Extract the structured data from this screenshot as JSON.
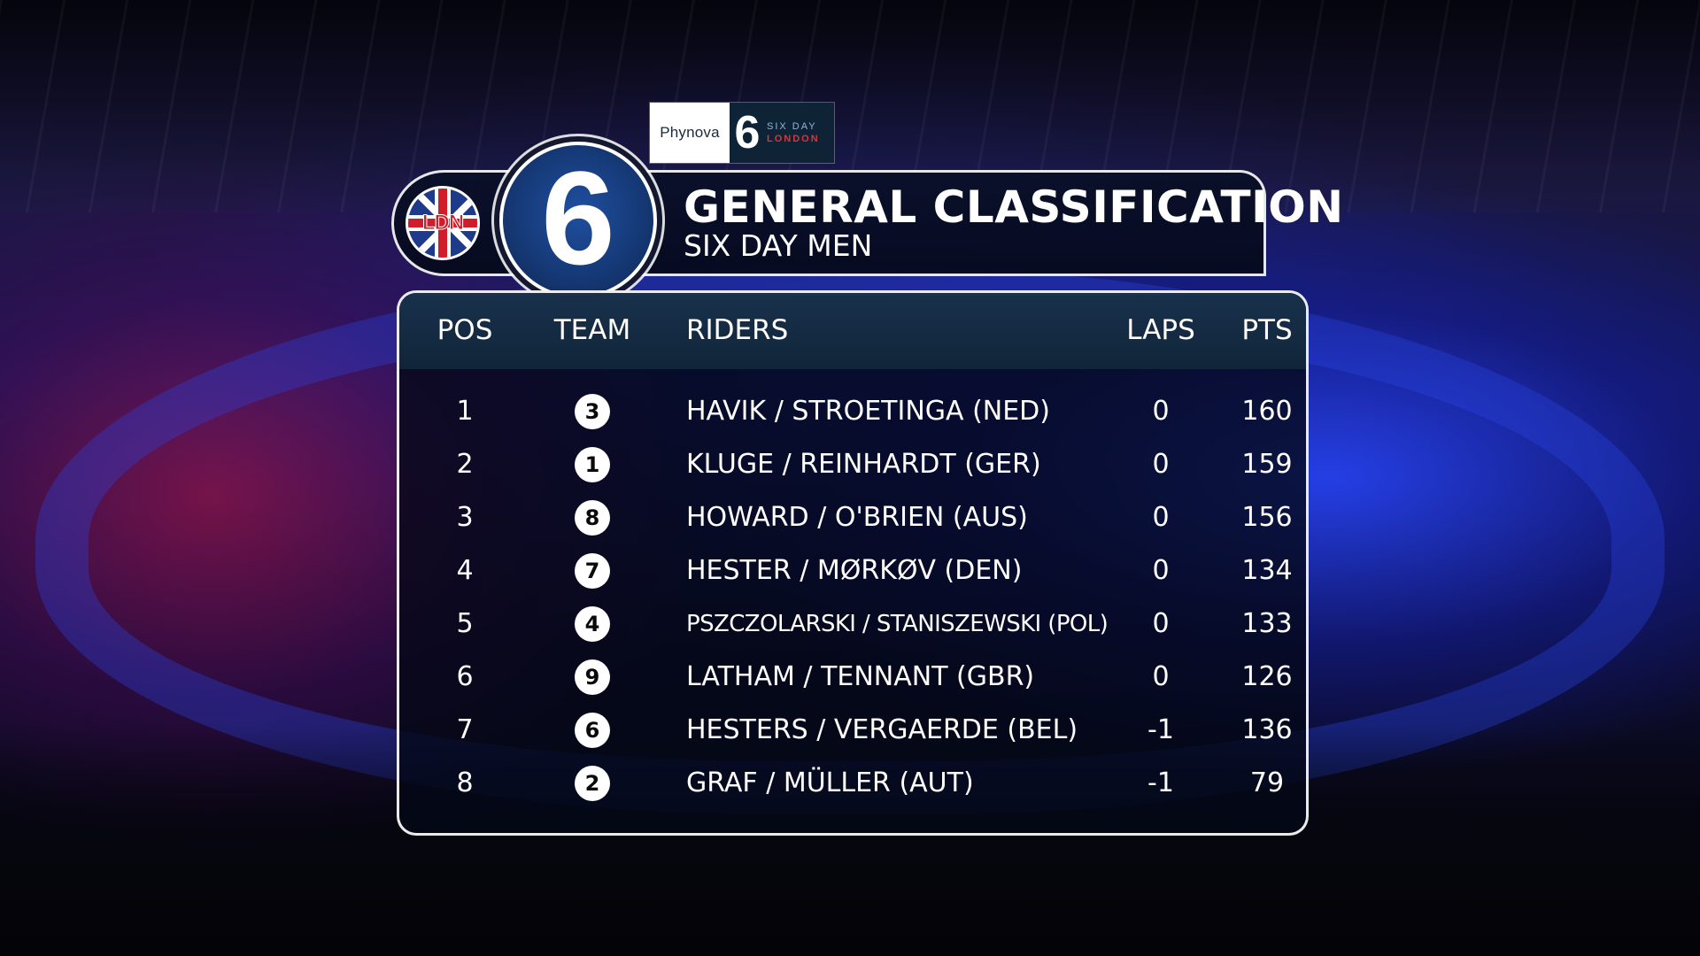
{
  "sponsor": {
    "brand": "Phynova",
    "six_glyph": "6",
    "event_line1": "SIX DAY",
    "event_line2": "LONDON"
  },
  "header": {
    "badge_text": "LDN",
    "big_number": "6",
    "title": "GENERAL CLASSIFICATION",
    "subtitle": "SIX DAY MEN"
  },
  "table": {
    "columns": {
      "pos": "POS",
      "team": "TEAM",
      "riders": "RIDERS",
      "laps": "LAPS",
      "pts": "PTS"
    },
    "rows": [
      {
        "pos": "1",
        "team": "3",
        "riders": "HAVIK / STROETINGA (NED)",
        "laps": "0",
        "pts": "160"
      },
      {
        "pos": "2",
        "team": "1",
        "riders": "KLUGE / REINHARDT (GER)",
        "laps": "0",
        "pts": "159"
      },
      {
        "pos": "3",
        "team": "8",
        "riders": "HOWARD / O'BRIEN (AUS)",
        "laps": "0",
        "pts": "156"
      },
      {
        "pos": "4",
        "team": "7",
        "riders": "HESTER / MØRKØV (DEN)",
        "laps": "0",
        "pts": "134"
      },
      {
        "pos": "5",
        "team": "4",
        "riders": "PSZCZOLARSKI / STANISZEWSKI (POL)",
        "laps": "0",
        "pts": "133"
      },
      {
        "pos": "6",
        "team": "9",
        "riders": "LATHAM / TENNANT (GBR)",
        "laps": "0",
        "pts": "126"
      },
      {
        "pos": "7",
        "team": "6",
        "riders": "HESTERS / VERGAERDE (BEL)",
        "laps": "-1",
        "pts": "136"
      },
      {
        "pos": "8",
        "team": "2",
        "riders": "GRAF / MÜLLER (AUT)",
        "laps": "-1",
        "pts": "79"
      }
    ]
  },
  "colors": {
    "header_bg": "#0a1028",
    "table_head_bg": "#18314c",
    "badge_blue": "#1f4fa0",
    "union_red": "#cf1d2b",
    "event_red": "#d8353a"
  },
  "icons": {
    "flag": "union-jack-icon",
    "logo": "six-day-logo-icon"
  }
}
